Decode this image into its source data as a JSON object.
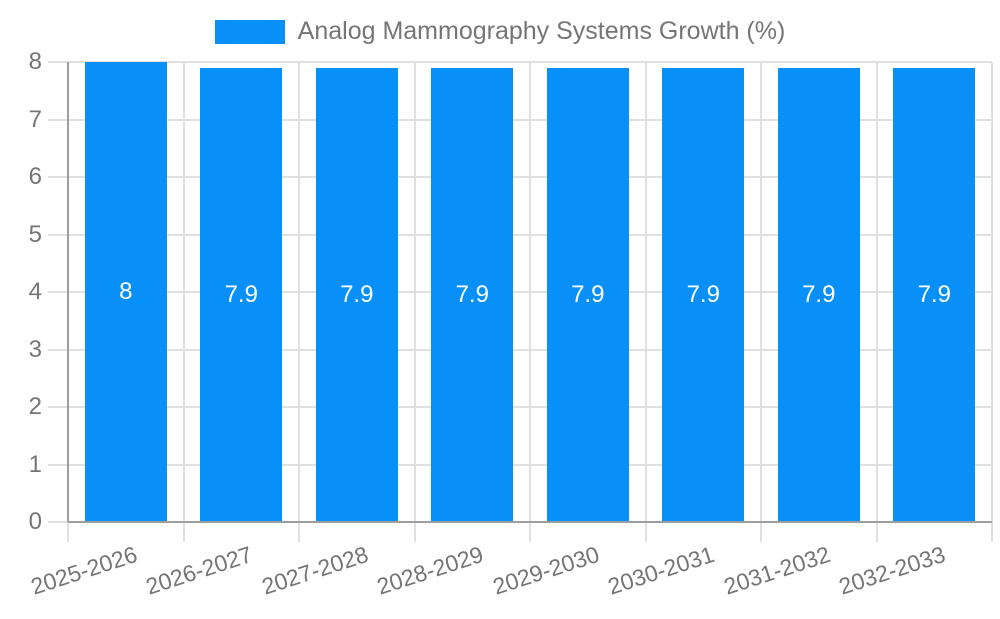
{
  "legend": {
    "label": "Analog Mammography Systems Growth (%)"
  },
  "colors": {
    "bar": "#0890f8",
    "text": "#757575",
    "axis_line": "#9e9e9e",
    "gridline": "#e0e0e0",
    "bar_label": "#ffffff",
    "background": "#ffffff"
  },
  "chart_data": {
    "type": "bar",
    "title": "Analog Mammography Systems Growth (%)",
    "categories": [
      "2025-2026",
      "2026-2027",
      "2027-2028",
      "2028-2029",
      "2029-2030",
      "2030-2031",
      "2031-2032",
      "2032-2033"
    ],
    "values": [
      8,
      7.9,
      7.9,
      7.9,
      7.9,
      7.9,
      7.9,
      7.9
    ],
    "bar_labels": [
      "8",
      "7.9",
      "7.9",
      "7.9",
      "7.9",
      "7.9",
      "7.9",
      "7.9"
    ],
    "xlabel": "",
    "ylabel": "",
    "ylim": [
      0,
      8
    ],
    "yticks": [
      0,
      1,
      2,
      3,
      4,
      5,
      6,
      7,
      8
    ],
    "grid": true,
    "legend_position": "top",
    "x_tick_rotation_deg": -18,
    "bar_label_position": "center"
  }
}
